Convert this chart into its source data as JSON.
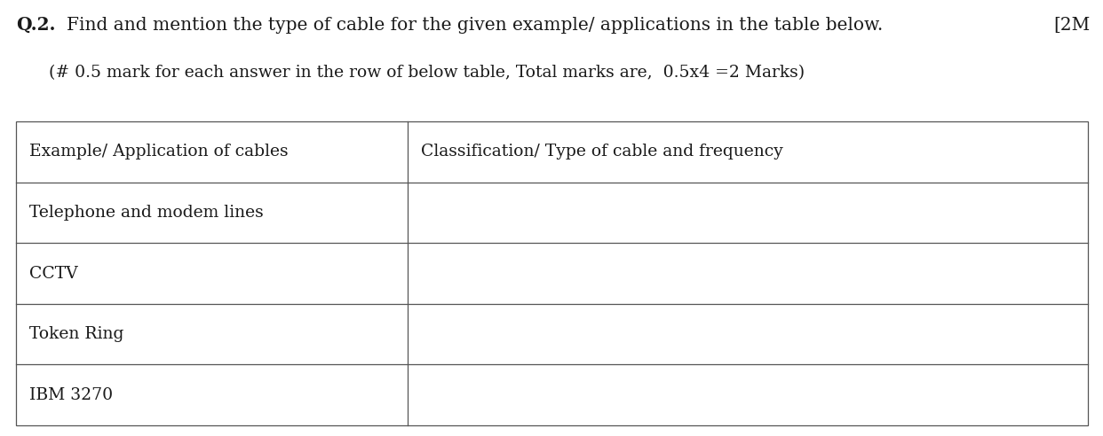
{
  "title_q": "Q.2.",
  "title_text": "Find and mention the type of cable for the given example/ applications in the table below.",
  "title_marks": "[2M",
  "subtitle": "(# 0.5 mark for each answer in the row of below table, Total marks are,  0.5x4 =2 Marks)",
  "col1_header": "Example/ Application of cables",
  "col2_header": "Classification/ Type of cable and frequency",
  "rows": [
    "Telephone and modem lines",
    "CCTV",
    "Token Ring",
    "IBM 3270"
  ],
  "bg_color": "#ffffff",
  "text_color": "#1a1a1a",
  "line_color": "#555555",
  "font_size_title": 14.5,
  "font_size_sub": 13.5,
  "font_size_table": 13.5,
  "fig_width": 12.42,
  "fig_height": 4.92,
  "dpi": 100
}
